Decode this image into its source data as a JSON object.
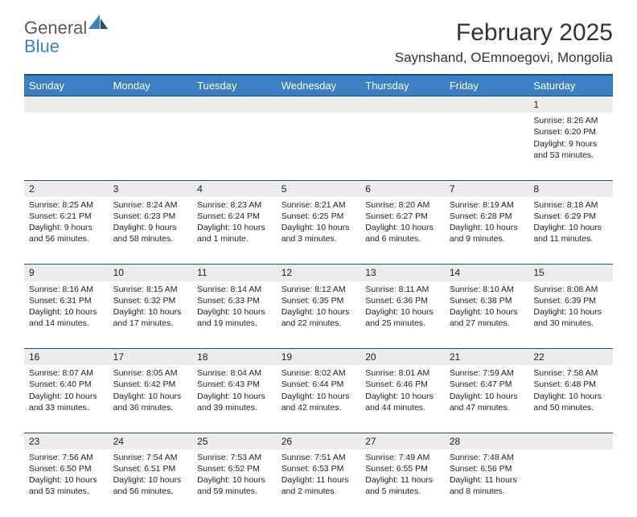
{
  "brand": {
    "word1": "General",
    "word2": "Blue"
  },
  "title": "February 2025",
  "location": "Saynshand, OEmnoegovi, Mongolia",
  "colors": {
    "header_bg": "#3b7fc4",
    "header_border": "#1f4e79",
    "daynum_bg": "#ececec",
    "page_bg": "#ffffff",
    "text": "#222222",
    "brand_gray": "#5a5a5a",
    "brand_blue": "#3b7fc4"
  },
  "daysOfWeek": [
    "Sunday",
    "Monday",
    "Tuesday",
    "Wednesday",
    "Thursday",
    "Friday",
    "Saturday"
  ],
  "weeks": [
    {
      "nums": [
        "",
        "",
        "",
        "",
        "",
        "",
        "1"
      ],
      "cells": [
        "",
        "",
        "",
        "",
        "",
        "",
        "Sunrise: 8:26 AM\nSunset: 6:20 PM\nDaylight: 9 hours and 53 minutes."
      ]
    },
    {
      "nums": [
        "2",
        "3",
        "4",
        "5",
        "6",
        "7",
        "8"
      ],
      "cells": [
        "Sunrise: 8:25 AM\nSunset: 6:21 PM\nDaylight: 9 hours and 56 minutes.",
        "Sunrise: 8:24 AM\nSunset: 6:23 PM\nDaylight: 9 hours and 58 minutes.",
        "Sunrise: 8:23 AM\nSunset: 6:24 PM\nDaylight: 10 hours and 1 minute.",
        "Sunrise: 8:21 AM\nSunset: 6:25 PM\nDaylight: 10 hours and 3 minutes.",
        "Sunrise: 8:20 AM\nSunset: 6:27 PM\nDaylight: 10 hours and 6 minutes.",
        "Sunrise: 8:19 AM\nSunset: 6:28 PM\nDaylight: 10 hours and 9 minutes.",
        "Sunrise: 8:18 AM\nSunset: 6:29 PM\nDaylight: 10 hours and 11 minutes."
      ]
    },
    {
      "nums": [
        "9",
        "10",
        "11",
        "12",
        "13",
        "14",
        "15"
      ],
      "cells": [
        "Sunrise: 8:16 AM\nSunset: 6:31 PM\nDaylight: 10 hours and 14 minutes.",
        "Sunrise: 8:15 AM\nSunset: 6:32 PM\nDaylight: 10 hours and 17 minutes.",
        "Sunrise: 8:14 AM\nSunset: 6:33 PM\nDaylight: 10 hours and 19 minutes.",
        "Sunrise: 8:12 AM\nSunset: 6:35 PM\nDaylight: 10 hours and 22 minutes.",
        "Sunrise: 8:11 AM\nSunset: 6:36 PM\nDaylight: 10 hours and 25 minutes.",
        "Sunrise: 8:10 AM\nSunset: 6:38 PM\nDaylight: 10 hours and 27 minutes.",
        "Sunrise: 8:08 AM\nSunset: 6:39 PM\nDaylight: 10 hours and 30 minutes."
      ]
    },
    {
      "nums": [
        "16",
        "17",
        "18",
        "19",
        "20",
        "21",
        "22"
      ],
      "cells": [
        "Sunrise: 8:07 AM\nSunset: 6:40 PM\nDaylight: 10 hours and 33 minutes.",
        "Sunrise: 8:05 AM\nSunset: 6:42 PM\nDaylight: 10 hours and 36 minutes.",
        "Sunrise: 8:04 AM\nSunset: 6:43 PM\nDaylight: 10 hours and 39 minutes.",
        "Sunrise: 8:02 AM\nSunset: 6:44 PM\nDaylight: 10 hours and 42 minutes.",
        "Sunrise: 8:01 AM\nSunset: 6:46 PM\nDaylight: 10 hours and 44 minutes.",
        "Sunrise: 7:59 AM\nSunset: 6:47 PM\nDaylight: 10 hours and 47 minutes.",
        "Sunrise: 7:58 AM\nSunset: 6:48 PM\nDaylight: 10 hours and 50 minutes."
      ]
    },
    {
      "nums": [
        "23",
        "24",
        "25",
        "26",
        "27",
        "28",
        ""
      ],
      "cells": [
        "Sunrise: 7:56 AM\nSunset: 6:50 PM\nDaylight: 10 hours and 53 minutes.",
        "Sunrise: 7:54 AM\nSunset: 6:51 PM\nDaylight: 10 hours and 56 minutes.",
        "Sunrise: 7:53 AM\nSunset: 6:52 PM\nDaylight: 10 hours and 59 minutes.",
        "Sunrise: 7:51 AM\nSunset: 6:53 PM\nDaylight: 11 hours and 2 minutes.",
        "Sunrise: 7:49 AM\nSunset: 6:55 PM\nDaylight: 11 hours and 5 minutes.",
        "Sunrise: 7:48 AM\nSunset: 6:56 PM\nDaylight: 11 hours and 8 minutes.",
        ""
      ]
    }
  ]
}
